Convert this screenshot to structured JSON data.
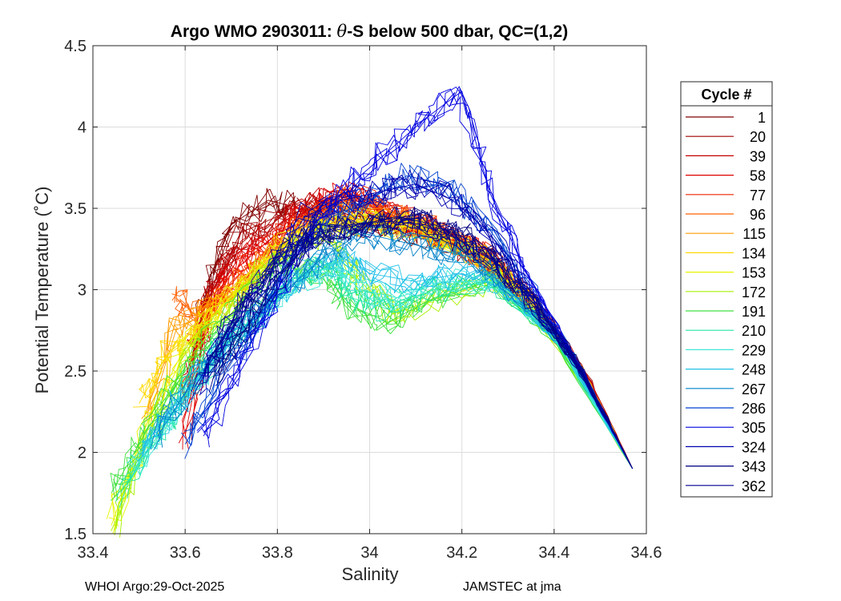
{
  "chart_data": {
    "type": "line",
    "title_prefix": "Argo WMO 2903011: ",
    "title_theta": "θ",
    "title_suffix": "-S below 500 dbar,  QC=(1,2)",
    "xlabel": "Salinity",
    "ylabel": "Potential Temperature (˚C)",
    "xlim": [
      33.4,
      34.6
    ],
    "ylim": [
      1.5,
      4.5
    ],
    "xticks": [
      33.4,
      33.6,
      33.8,
      34,
      34.2,
      34.4,
      34.6
    ],
    "xtick_labels": [
      "33.4",
      "33.6",
      "33.8",
      "34",
      "34.2",
      "34.4",
      "34.6"
    ],
    "yticks": [
      1.5,
      2,
      2.5,
      3,
      3.5,
      4,
      4.5
    ],
    "ytick_labels": [
      "1.5",
      "2",
      "2.5",
      "3",
      "3.5",
      "4",
      "4.5"
    ],
    "grid": true,
    "legend_title": "Cycle #",
    "legend_position": "outside-right",
    "series": [
      {
        "name": "1",
        "color": "#800000",
        "salinity": [
          33.62,
          33.65,
          33.7,
          33.78,
          33.85,
          33.95,
          34.05,
          34.15,
          34.25,
          34.35,
          34.45,
          34.57
        ],
        "theta": [
          2.62,
          3.05,
          3.4,
          3.55,
          3.5,
          3.42,
          3.38,
          3.33,
          3.18,
          2.92,
          2.55,
          1.9
        ]
      },
      {
        "name": "20",
        "color": "#a00000",
        "salinity": [
          33.63,
          33.66,
          33.72,
          33.8,
          33.88,
          33.96,
          34.05,
          34.15,
          34.26,
          34.36,
          34.46,
          34.57
        ],
        "theta": [
          2.65,
          3.0,
          3.35,
          3.45,
          3.5,
          3.46,
          3.4,
          3.33,
          3.18,
          2.9,
          2.52,
          1.9
        ]
      },
      {
        "name": "39",
        "color": "#c40000",
        "salinity": [
          33.6,
          33.64,
          33.7,
          33.78,
          33.88,
          33.97,
          34.05,
          34.15,
          34.26,
          34.36,
          34.46,
          34.57
        ],
        "theta": [
          2.3,
          2.9,
          3.2,
          3.35,
          3.55,
          3.55,
          3.45,
          3.35,
          3.18,
          2.92,
          2.52,
          1.9
        ]
      },
      {
        "name": "58",
        "color": "#e00000",
        "salinity": [
          33.6,
          33.65,
          33.7,
          33.78,
          33.88,
          33.95,
          34.05,
          34.15,
          34.26,
          34.36,
          34.46,
          34.57
        ],
        "theta": [
          2.1,
          2.85,
          3.1,
          3.3,
          3.52,
          3.62,
          3.45,
          3.35,
          3.18,
          2.9,
          2.5,
          1.9
        ]
      },
      {
        "name": "77",
        "color": "#f02000",
        "salinity": [
          33.61,
          33.65,
          33.7,
          33.78,
          33.86,
          33.95,
          34.05,
          34.15,
          34.26,
          34.36,
          34.46,
          34.57
        ],
        "theta": [
          2.65,
          2.85,
          3.05,
          3.25,
          3.45,
          3.6,
          3.45,
          3.35,
          3.18,
          2.9,
          2.5,
          1.9
        ]
      },
      {
        "name": "96",
        "color": "#ff6000",
        "salinity": [
          33.58,
          33.62,
          33.68,
          33.76,
          33.86,
          33.95,
          34.05,
          34.15,
          34.26,
          34.36,
          34.46,
          34.57
        ],
        "theta": [
          2.95,
          2.85,
          2.95,
          3.15,
          3.4,
          3.55,
          3.45,
          3.35,
          3.18,
          2.9,
          2.5,
          1.9
        ]
      },
      {
        "name": "115",
        "color": "#ff9c00",
        "salinity": [
          33.52,
          33.58,
          33.64,
          33.72,
          33.82,
          33.92,
          34.02,
          34.12,
          34.24,
          34.34,
          34.46,
          34.57
        ],
        "theta": [
          2.2,
          2.75,
          2.85,
          3.0,
          3.3,
          3.45,
          3.42,
          3.35,
          3.2,
          2.95,
          2.5,
          1.9
        ]
      },
      {
        "name": "134",
        "color": "#ffd800",
        "salinity": [
          33.5,
          33.56,
          33.62,
          33.7,
          33.8,
          33.9,
          34.0,
          34.1,
          34.22,
          34.34,
          34.46,
          34.57
        ],
        "theta": [
          2.3,
          2.6,
          2.75,
          2.95,
          3.25,
          3.4,
          3.42,
          3.38,
          3.25,
          2.95,
          2.5,
          1.9
        ]
      },
      {
        "name": "153",
        "color": "#e8f400",
        "salinity": [
          33.44,
          33.52,
          33.6,
          33.68,
          33.78,
          33.88,
          33.98,
          34.1,
          34.22,
          34.34,
          34.46,
          34.57
        ],
        "theta": [
          1.55,
          2.2,
          2.65,
          2.9,
          3.2,
          3.38,
          3.42,
          3.38,
          3.25,
          2.95,
          2.5,
          1.9
        ]
      },
      {
        "name": "172",
        "color": "#a8f000",
        "salinity": [
          33.45,
          33.52,
          33.6,
          33.7,
          33.8,
          33.9,
          33.98,
          34.05,
          34.15,
          34.28,
          34.4,
          34.57
        ],
        "theta": [
          1.55,
          2.1,
          2.55,
          2.9,
          3.2,
          3.35,
          3.05,
          2.85,
          2.95,
          3.05,
          2.7,
          1.9
        ]
      },
      {
        "name": "191",
        "color": "#40e040",
        "salinity": [
          33.44,
          33.52,
          33.6,
          33.7,
          33.8,
          33.9,
          33.96,
          34.04,
          34.14,
          34.26,
          34.4,
          34.57
        ],
        "theta": [
          1.75,
          2.15,
          2.5,
          2.85,
          3.15,
          3.1,
          2.9,
          2.8,
          2.95,
          3.05,
          2.7,
          1.9
        ]
      },
      {
        "name": "210",
        "color": "#20e6a0",
        "salinity": [
          33.46,
          33.54,
          33.62,
          33.72,
          33.82,
          33.92,
          33.96,
          34.04,
          34.14,
          34.26,
          34.4,
          34.57
        ],
        "theta": [
          1.75,
          2.1,
          2.45,
          2.75,
          3.05,
          3.15,
          2.95,
          2.88,
          3.0,
          3.05,
          2.72,
          1.9
        ]
      },
      {
        "name": "229",
        "color": "#40e8d8",
        "salinity": [
          33.48,
          33.56,
          33.64,
          33.74,
          33.84,
          33.92,
          33.98,
          34.06,
          34.16,
          34.28,
          34.4,
          34.57
        ],
        "theta": [
          1.9,
          2.2,
          2.5,
          2.8,
          3.05,
          3.15,
          3.0,
          2.95,
          3.05,
          3.05,
          2.72,
          1.9
        ]
      },
      {
        "name": "248",
        "color": "#20c0e8",
        "salinity": [
          33.5,
          33.58,
          33.66,
          33.76,
          33.86,
          33.94,
          34.0,
          34.1,
          34.2,
          34.3,
          34.42,
          34.57
        ],
        "theta": [
          2.0,
          2.3,
          2.55,
          2.85,
          3.1,
          3.2,
          3.1,
          3.05,
          3.1,
          3.0,
          2.65,
          1.9
        ]
      },
      {
        "name": "267",
        "color": "#0080c8",
        "salinity": [
          33.54,
          33.62,
          33.7,
          33.8,
          33.9,
          33.98,
          34.06,
          34.14,
          34.22,
          34.32,
          34.44,
          34.57
        ],
        "theta": [
          2.1,
          2.45,
          2.7,
          2.95,
          3.2,
          3.35,
          3.3,
          3.25,
          3.2,
          2.95,
          2.6,
          1.9
        ]
      },
      {
        "name": "286",
        "color": "#0040d0",
        "salinity": [
          33.6,
          33.68,
          33.76,
          33.84,
          33.92,
          34.0,
          34.08,
          34.16,
          34.24,
          34.34,
          34.44,
          34.57
        ],
        "theta": [
          2.05,
          2.45,
          2.85,
          3.25,
          3.45,
          3.55,
          3.7,
          3.65,
          3.45,
          3.05,
          2.6,
          1.9
        ]
      },
      {
        "name": "305",
        "color": "#0000e0",
        "salinity": [
          33.64,
          33.72,
          33.8,
          33.88,
          33.96,
          34.04,
          34.12,
          34.2,
          34.26,
          34.34,
          34.44,
          34.57
        ],
        "theta": [
          2.1,
          2.55,
          3.0,
          3.4,
          3.65,
          3.85,
          4.05,
          4.22,
          3.6,
          3.1,
          2.6,
          1.9
        ]
      },
      {
        "name": "324",
        "color": "#0000b0",
        "salinity": [
          33.62,
          33.7,
          33.78,
          33.86,
          33.94,
          34.02,
          34.1,
          34.18,
          34.26,
          34.34,
          34.44,
          34.57
        ],
        "theta": [
          2.4,
          2.75,
          3.1,
          3.45,
          3.55,
          3.6,
          3.65,
          3.55,
          3.35,
          3.0,
          2.6,
          1.9
        ]
      },
      {
        "name": "343",
        "color": "#000080",
        "salinity": [
          33.66,
          33.74,
          33.82,
          33.9,
          33.98,
          34.06,
          34.14,
          34.22,
          34.28,
          34.36,
          34.46,
          34.57
        ],
        "theta": [
          2.45,
          2.8,
          3.15,
          3.35,
          3.4,
          3.45,
          3.4,
          3.3,
          3.15,
          2.9,
          2.5,
          1.9
        ]
      },
      {
        "name": "362",
        "color": "#000090",
        "salinity": [
          33.64,
          33.72,
          33.8,
          33.88,
          33.96,
          34.04,
          34.12,
          34.2,
          34.28,
          34.36,
          34.46,
          34.57
        ],
        "theta": [
          2.5,
          2.9,
          3.2,
          3.35,
          3.4,
          3.42,
          3.4,
          3.3,
          3.15,
          2.9,
          2.5,
          1.9
        ]
      }
    ]
  },
  "footer": {
    "left": "WHOI Argo:29-Oct-2025",
    "right": "JAMSTEC at jma"
  }
}
